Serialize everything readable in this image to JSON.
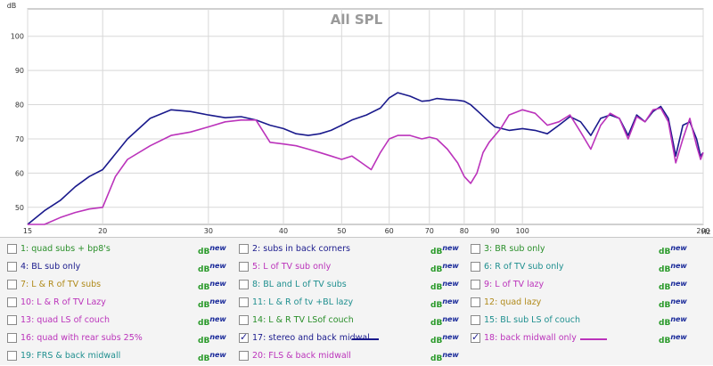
{
  "chart_data": {
    "type": "line",
    "title": "All SPL",
    "ylabel": "dB",
    "xlabel": "Hz",
    "xscale": "log",
    "xlim": [
      15,
      200
    ],
    "ylim": [
      45,
      108
    ],
    "x_ticks": [
      15,
      20,
      30,
      40,
      50,
      60,
      70,
      80,
      90,
      100,
      200
    ],
    "y_ticks": [
      50,
      60,
      70,
      80,
      90,
      100
    ],
    "grid": true,
    "series": [
      {
        "name": "17: stereo and back midwal",
        "color": "#1a1a8c",
        "x": [
          15,
          16,
          17,
          18,
          19,
          20,
          22,
          24,
          26,
          28,
          30,
          32,
          34,
          36,
          38,
          40,
          42,
          44,
          46,
          48,
          50,
          52,
          55,
          58,
          60,
          62,
          65,
          68,
          70,
          72,
          75,
          78,
          80,
          82,
          85,
          88,
          90,
          95,
          100,
          105,
          110,
          115,
          120,
          125,
          130,
          135,
          140,
          145,
          150,
          155,
          160,
          165,
          170,
          175,
          180,
          185,
          190,
          195,
          198,
          200
        ],
        "y": [
          45,
          49,
          52,
          56,
          59,
          61,
          70,
          76,
          78.5,
          78,
          77,
          76.2,
          76.5,
          75.5,
          74,
          73,
          71.5,
          71,
          71.5,
          72.5,
          74,
          75.5,
          77,
          79,
          82,
          83.5,
          82.5,
          81,
          81.2,
          81.8,
          81.5,
          81.3,
          81,
          80,
          77.5,
          75,
          73.5,
          72.5,
          73,
          72.5,
          71.5,
          74,
          76.5,
          75,
          71,
          76,
          77,
          76,
          71,
          77,
          75,
          78,
          79.5,
          76,
          65,
          74,
          75,
          70,
          65,
          66
        ]
      },
      {
        "name": "18: back midwall only",
        "color": "#bb33bb",
        "x": [
          15,
          16,
          17,
          18,
          19,
          20,
          21,
          22,
          24,
          26,
          28,
          30,
          32,
          34,
          36,
          38,
          40,
          42,
          44,
          46,
          48,
          50,
          52,
          54,
          56,
          58,
          60,
          62,
          65,
          68,
          70,
          72,
          75,
          78,
          80,
          82,
          84,
          86,
          88,
          90,
          92,
          95,
          100,
          105,
          110,
          115,
          120,
          125,
          130,
          135,
          140,
          145,
          150,
          155,
          160,
          165,
          170,
          175,
          180,
          185,
          190,
          195,
          198,
          200
        ],
        "y": [
          42,
          45,
          47,
          48.5,
          49.5,
          50,
          59,
          64,
          68,
          71,
          72,
          73.5,
          75,
          75.5,
          75.5,
          69,
          68.5,
          68,
          67,
          66,
          65,
          64,
          65,
          63,
          61,
          66,
          70,
          71,
          71,
          70,
          70.5,
          70,
          67,
          63,
          59,
          57,
          60,
          66,
          69,
          71,
          73,
          77,
          78.5,
          77.5,
          74,
          75,
          77,
          72,
          67,
          74,
          77.5,
          76,
          70,
          76.5,
          75,
          78.5,
          79,
          75,
          63,
          70,
          76,
          68,
          64,
          66
        ]
      }
    ]
  },
  "legend": [
    [
      {
        "label": "1: quad subs + bp8's",
        "color": "#2a8f2a",
        "checked": false
      },
      {
        "label": "2: subs in back corners",
        "color": "#1a1a8c",
        "checked": false
      },
      {
        "label": "3: BR sub only",
        "color": "#2a8f2a",
        "checked": false
      }
    ],
    [
      {
        "label": "4: BL sub only",
        "color": "#1a1a8c",
        "checked": false
      },
      {
        "label": "5: L of TV sub only",
        "color": "#bb33bb",
        "checked": false
      },
      {
        "label": "6: R of TV sub only",
        "color": "#1f8f8f",
        "checked": false
      }
    ],
    [
      {
        "label": "7: L & R of TV subs",
        "color": "#b08a1a",
        "checked": false
      },
      {
        "label": "8: BL and L of TV subs",
        "color": "#1f8f8f",
        "checked": false
      },
      {
        "label": "9: L of TV lazy",
        "color": "#bb33bb",
        "checked": false
      }
    ],
    [
      {
        "label": "10: L & R of TV Lazy",
        "color": "#bb33bb",
        "checked": false
      },
      {
        "label": "11: L & R of tv +BL lazy",
        "color": "#1f8f8f",
        "checked": false
      },
      {
        "label": "12: quad lazy",
        "color": "#b08a1a",
        "checked": false
      }
    ],
    [
      {
        "label": "13: quad LS of couch",
        "color": "#bb33bb",
        "checked": false
      },
      {
        "label": "14: L & R TV LSof couch",
        "color": "#2a8f2a",
        "checked": false
      },
      {
        "label": "15: BL sub LS of couch",
        "color": "#1f8f8f",
        "checked": false
      }
    ],
    [
      {
        "label": "16: quad with rear subs 25%",
        "color": "#bb33bb",
        "checked": false
      },
      {
        "label": "17: stereo and back midwal",
        "color": "#1a1a8c",
        "checked": true
      },
      {
        "label": "18: back midwall only",
        "color": "#bb33bb",
        "checked": true
      }
    ],
    [
      {
        "label": "19: FRS & back midwall",
        "color": "#1f8f8f",
        "checked": false
      },
      {
        "label": "20: FLS & back midwall",
        "color": "#bb33bb",
        "checked": false
      }
    ]
  ],
  "dbnew": {
    "db": "dB",
    "new": "new"
  }
}
